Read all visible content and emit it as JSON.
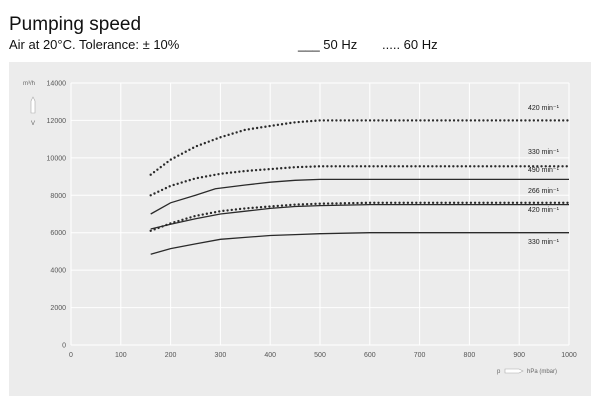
{
  "header": {
    "title": "Pumping speed",
    "subtitle": "Air at 20°C. Tolerance: ± 10%",
    "legend_solid": "___ 50 Hz",
    "legend_dotted": "..... 60 Hz"
  },
  "chart_data": {
    "type": "line",
    "ylabel": "m³/h",
    "ylabel_v": "V",
    "xlabel_p": "p",
    "xlabel": "hPa (mbar)",
    "xlim": [
      0,
      1000
    ],
    "ylim": [
      0,
      14000
    ],
    "xticks": [
      0,
      100,
      200,
      300,
      400,
      500,
      600,
      700,
      800,
      900,
      1000
    ],
    "yticks": [
      0,
      2000,
      4000,
      6000,
      8000,
      10000,
      12000,
      14000
    ],
    "grid": true,
    "series": [
      {
        "name": "420 min⁻¹",
        "style": "dotted",
        "x": [
          160,
          200,
          250,
          300,
          350,
          400,
          450,
          500,
          600,
          700,
          800,
          900,
          1000
        ],
        "y": [
          9100,
          9900,
          10600,
          11100,
          11500,
          11700,
          11900,
          12000,
          12000,
          12000,
          12000,
          12000,
          12000
        ]
      },
      {
        "name": "330 min⁻¹",
        "style": "dotted",
        "x": [
          160,
          200,
          250,
          300,
          350,
          400,
          450,
          500,
          600,
          700,
          800,
          900,
          1000
        ],
        "y": [
          8000,
          8500,
          8900,
          9150,
          9300,
          9400,
          9500,
          9550,
          9550,
          9550,
          9550,
          9550,
          9550
        ]
      },
      {
        "name": "490 min⁻¹",
        "style": "solid",
        "x": [
          160,
          200,
          250,
          290,
          350,
          400,
          450,
          500,
          600,
          700,
          800,
          900,
          1000
        ],
        "y": [
          7000,
          7600,
          8000,
          8350,
          8550,
          8700,
          8800,
          8850,
          8850,
          8850,
          8850,
          8850,
          8850
        ]
      },
      {
        "name": "266 min⁻¹",
        "style": "dotted",
        "x": [
          160,
          200,
          250,
          300,
          350,
          400,
          450,
          500,
          600,
          700,
          800,
          900,
          1000
        ],
        "y": [
          6100,
          6500,
          6900,
          7150,
          7300,
          7400,
          7500,
          7550,
          7600,
          7600,
          7600,
          7600,
          7600
        ]
      },
      {
        "name": "420 min⁻¹",
        "style": "solid",
        "x": [
          160,
          200,
          250,
          300,
          350,
          400,
          450,
          500,
          600,
          700,
          800,
          900,
          1000
        ],
        "y": [
          6200,
          6450,
          6750,
          7000,
          7150,
          7300,
          7400,
          7450,
          7500,
          7500,
          7500,
          7500,
          7500
        ]
      },
      {
        "name": "330 min⁻¹",
        "style": "solid",
        "x": [
          160,
          200,
          250,
          300,
          350,
          400,
          450,
          500,
          600,
          700,
          800,
          900,
          1000
        ],
        "y": [
          4850,
          5150,
          5400,
          5650,
          5750,
          5850,
          5900,
          5950,
          6000,
          6000,
          6000,
          6000,
          6000
        ]
      }
    ],
    "line_labels": [
      {
        "text": "420 min⁻¹",
        "series": 0
      },
      {
        "text": "330 min⁻¹",
        "series": 1
      },
      {
        "text": "490 min⁻¹",
        "series": 2
      },
      {
        "text": "266 min⁻¹",
        "series": 3
      },
      {
        "text": "420 min⁻¹",
        "series": 4
      },
      {
        "text": "330 min⁻¹",
        "series": 5
      }
    ]
  }
}
